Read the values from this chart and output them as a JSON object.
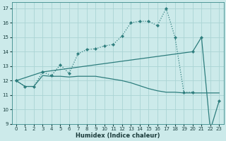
{
  "xlabel": "Humidex (Indice chaleur)",
  "bg_color": "#cceaea",
  "line_color": "#2d7d7d",
  "grid_color": "#aad4d4",
  "xlim": [
    -0.5,
    23.5
  ],
  "ylim": [
    9,
    17.4
  ],
  "yticks": [
    9,
    10,
    11,
    12,
    13,
    14,
    15,
    16,
    17
  ],
  "xticks": [
    0,
    1,
    2,
    3,
    4,
    5,
    6,
    7,
    8,
    9,
    10,
    11,
    12,
    13,
    14,
    15,
    16,
    17,
    18,
    19,
    20,
    21,
    22,
    23
  ],
  "line1_x": [
    0,
    1,
    2,
    3,
    4,
    5,
    6,
    7,
    8,
    9,
    10,
    11,
    12,
    13,
    14,
    15,
    16,
    17,
    18,
    19,
    20
  ],
  "line1_y": [
    12.0,
    11.6,
    11.6,
    12.6,
    12.35,
    13.1,
    12.5,
    13.85,
    14.15,
    14.2,
    14.4,
    14.5,
    15.1,
    16.0,
    16.1,
    16.1,
    15.8,
    17.0,
    15.0,
    11.2,
    11.2
  ],
  "line2_x": [
    0,
    1,
    2,
    3,
    4,
    5,
    6,
    7,
    8,
    9,
    10,
    11,
    12,
    13,
    14,
    15,
    16,
    17,
    18,
    19,
    20,
    21,
    22,
    23
  ],
  "line2_y": [
    12.0,
    11.6,
    11.6,
    12.35,
    12.3,
    12.3,
    12.25,
    12.3,
    12.3,
    12.3,
    12.2,
    12.1,
    12.0,
    11.85,
    11.65,
    11.45,
    11.3,
    11.2,
    11.2,
    11.15,
    11.15,
    11.15,
    11.15,
    11.15
  ],
  "line3_x": [
    0,
    3,
    20,
    21,
    22,
    23
  ],
  "line3_y": [
    12.0,
    12.6,
    14.0,
    15.0,
    8.6,
    10.6
  ]
}
